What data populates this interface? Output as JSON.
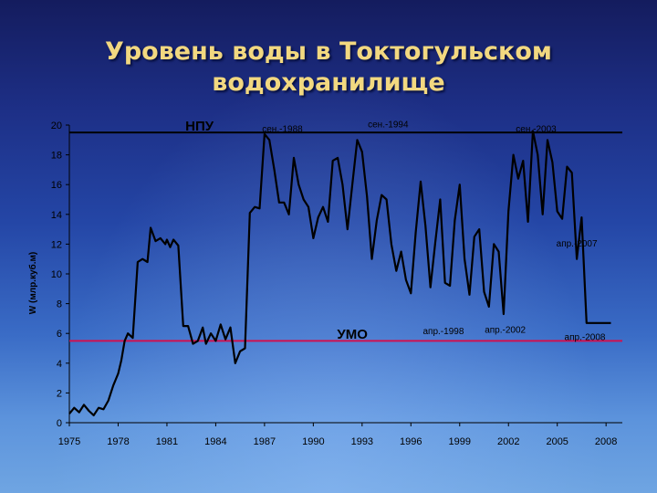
{
  "slide": {
    "title_line1": "Уровень воды в Токтогульском",
    "title_line2": "водохранилище"
  },
  "chart_data": {
    "type": "line",
    "title": "",
    "xlabel": "",
    "ylabel": "W (млр.куб.м)",
    "xlim": [
      1975,
      2009
    ],
    "ylim": [
      0,
      20
    ],
    "x_ticks": [
      "1975",
      "1978",
      "1981",
      "1984",
      "1987",
      "1990",
      "1993",
      "1996",
      "1999",
      "2002",
      "2005",
      "2008"
    ],
    "y_ticks": [
      "0",
      "2",
      "4",
      "6",
      "8",
      "10",
      "12",
      "14",
      "16",
      "18",
      "20"
    ],
    "grid": false,
    "series": [
      {
        "name": "",
        "color": "#000000",
        "x": [
          1975.0,
          1975.3,
          1975.6,
          1975.9,
          1976.2,
          1976.5,
          1976.8,
          1977.1,
          1977.4,
          1977.7,
          1978.0,
          1978.2,
          1978.4,
          1978.6,
          1978.9,
          1979.2,
          1979.5,
          1979.8,
          1980.0,
          1980.3,
          1980.6,
          1980.9,
          1981.0,
          1981.2,
          1981.4,
          1981.7,
          1982.0,
          1982.3,
          1982.6,
          1982.9,
          1983.2,
          1983.4,
          1983.7,
          1984.0,
          1984.3,
          1984.6,
          1984.9,
          1985.2,
          1985.5,
          1985.8,
          1986.1,
          1986.4,
          1986.7,
          1987.0,
          1987.3,
          1987.6,
          1987.9,
          1988.2,
          1988.5,
          1988.8,
          1989.1,
          1989.4,
          1989.7,
          1990.0,
          1990.3,
          1990.6,
          1990.9,
          1991.2,
          1991.5,
          1991.8,
          1992.1,
          1992.4,
          1992.7,
          1993.0,
          1993.3,
          1993.6,
          1993.9,
          1994.2,
          1994.5,
          1994.8,
          1995.1,
          1995.4,
          1995.7,
          1996.0,
          1996.3,
          1996.6,
          1996.9,
          1997.2,
          1997.5,
          1997.8,
          1998.1,
          1998.4,
          1998.7,
          1999.0,
          1999.3,
          1999.6,
          1999.9,
          2000.2,
          2000.5,
          2000.8,
          2001.1,
          2001.4,
          2001.7,
          2002.0,
          2002.3,
          2002.6,
          2002.9,
          2003.2,
          2003.5,
          2003.8,
          2004.1,
          2004.4,
          2004.7,
          2005.0,
          2005.3,
          2005.6,
          2005.9,
          2006.2,
          2006.5,
          2006.8,
          2007.1,
          2007.4,
          2007.7,
          2008.0,
          2008.3
        ],
        "values": [
          0.6,
          1.0,
          0.7,
          1.2,
          0.8,
          0.5,
          1.0,
          0.9,
          1.5,
          2.5,
          3.3,
          4.2,
          5.5,
          6.0,
          5.7,
          10.8,
          11.0,
          10.8,
          13.1,
          12.2,
          12.4,
          12.0,
          12.3,
          11.8,
          12.3,
          11.9,
          6.5,
          6.5,
          5.3,
          5.5,
          6.4,
          5.3,
          6.0,
          5.5,
          6.6,
          5.6,
          6.4,
          4.0,
          4.8,
          5.0,
          14.1,
          14.5,
          14.4,
          19.4,
          19.0,
          17.0,
          14.8,
          14.8,
          14.0,
          17.8,
          16.0,
          15.0,
          14.5,
          12.4,
          13.8,
          14.5,
          13.5,
          17.6,
          17.8,
          16.0,
          13.0,
          16.0,
          19.0,
          18.2,
          15.2,
          11.0,
          13.6,
          15.3,
          15.0,
          12.0,
          10.2,
          11.5,
          9.6,
          8.7,
          12.8,
          16.2,
          13.2,
          9.1,
          12.1,
          15.0,
          9.4,
          9.2,
          13.6,
          16.0,
          11.0,
          8.6,
          12.5,
          13.0,
          8.8,
          7.8,
          12.0,
          11.5,
          7.3,
          14.2,
          18.0,
          16.4,
          17.6,
          13.5,
          19.6,
          18.0,
          14.0,
          19.0,
          17.5,
          14.2,
          13.7,
          17.2,
          16.8,
          11.0,
          13.8,
          6.7,
          6.7,
          6.7,
          6.7,
          6.7,
          6.7
        ]
      }
    ],
    "reference_lines": [
      {
        "label": "НПУ",
        "y": 19.5,
        "color": "#000000"
      },
      {
        "label": "УМО",
        "y": 5.5,
        "color": "#d01050"
      }
    ],
    "annotations": [
      {
        "text": "сен.-1988",
        "x": 1988.1,
        "y": 19.8
      },
      {
        "text": "сен.-1994",
        "x": 1994.6,
        "y": 20.1
      },
      {
        "text": "сен.-2003",
        "x": 2003.7,
        "y": 19.8
      },
      {
        "text": "апр.-2007",
        "x": 2006.2,
        "y": 12.1
      },
      {
        "text": "апр.-1998",
        "x": 1998.0,
        "y": 6.2
      },
      {
        "text": "апр.-2002",
        "x": 2001.8,
        "y": 6.3
      },
      {
        "text": "апр.-2008",
        "x": 2006.7,
        "y": 5.8
      }
    ]
  }
}
